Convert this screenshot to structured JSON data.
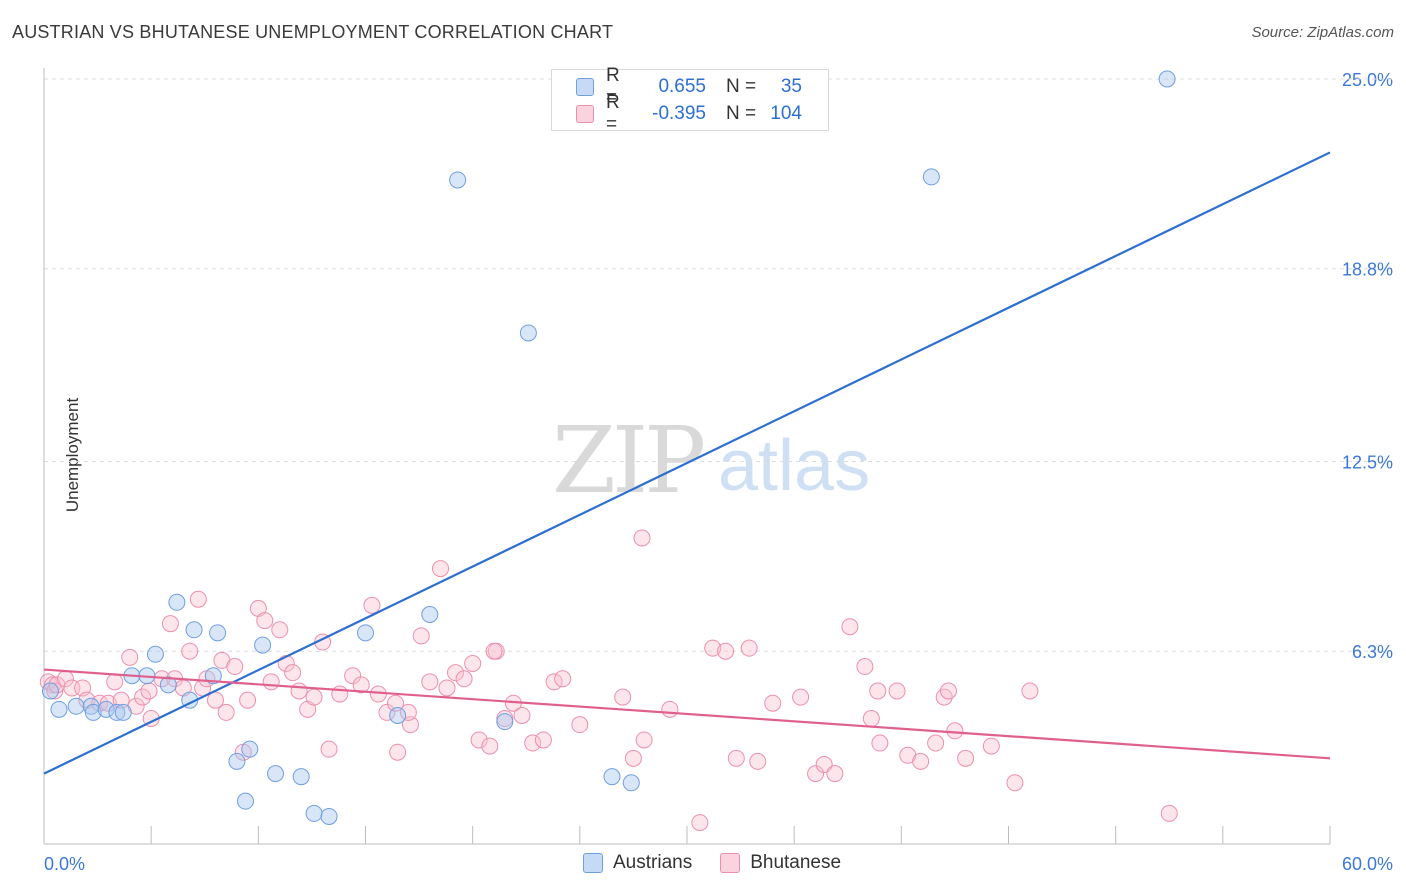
{
  "header": {
    "title": "AUSTRIAN VS BHUTANESE UNEMPLOYMENT CORRELATION CHART",
    "source": "Source: ZipAtlas.com"
  },
  "watermark": {
    "zip": "ZIP",
    "atlas": "atlas"
  },
  "legend": {
    "rows": [
      {
        "r_label": "R =",
        "r_value": "0.655",
        "n_label": "N =",
        "n_value": "35",
        "color": "#a9c7f0",
        "border": "#6f9fe0"
      },
      {
        "r_label": "R =",
        "r_value": "-0.395",
        "n_label": "N =",
        "n_value": "104",
        "color": "#f7c0d0",
        "border": "#ec8fae"
      }
    ]
  },
  "bottom_legend": {
    "austrians": "Austrians",
    "bhutanese": "Bhutanese"
  },
  "chart_data": {
    "type": "scatter",
    "title": "AUSTRIAN VS BHUTANESE UNEMPLOYMENT CORRELATION CHART",
    "xlabel": "",
    "ylabel": "Unemployment",
    "xlim": [
      0,
      60
    ],
    "ylim": [
      0,
      26
    ],
    "x_tick_labels": [
      "0.0%",
      "60.0%"
    ],
    "y_ticks": [
      6.3,
      12.5,
      18.8,
      25.0
    ],
    "y_tick_labels": [
      "6.3%",
      "12.5%",
      "18.8%",
      "25.0%"
    ],
    "colors": {
      "austrians": "#2c6fd1",
      "bhutanese": "#e0608d",
      "axis_text": "#3b78d8"
    },
    "series": [
      {
        "name": "Austrians",
        "R": 0.655,
        "N": 35,
        "trend": {
          "x0": 0,
          "y0": 2.3,
          "x1": 60,
          "y1": 22.6
        },
        "points": [
          [
            0.3,
            5.0
          ],
          [
            0.7,
            4.4
          ],
          [
            1.5,
            4.5
          ],
          [
            2.2,
            4.5
          ],
          [
            2.3,
            4.3
          ],
          [
            2.9,
            4.4
          ],
          [
            3.4,
            4.3
          ],
          [
            3.7,
            4.3
          ],
          [
            4.1,
            5.5
          ],
          [
            4.8,
            5.5
          ],
          [
            5.2,
            6.2
          ],
          [
            5.8,
            5.2
          ],
          [
            6.2,
            7.9
          ],
          [
            6.8,
            4.7
          ],
          [
            7.0,
            7.0
          ],
          [
            7.9,
            5.5
          ],
          [
            8.1,
            6.9
          ],
          [
            9.0,
            2.7
          ],
          [
            9.4,
            1.4
          ],
          [
            9.6,
            3.1
          ],
          [
            10.2,
            6.5
          ],
          [
            10.8,
            2.3
          ],
          [
            12.0,
            2.2
          ],
          [
            12.6,
            1.0
          ],
          [
            13.3,
            0.9
          ],
          [
            15.0,
            6.9
          ],
          [
            16.5,
            4.2
          ],
          [
            18.0,
            7.5
          ],
          [
            19.3,
            21.7
          ],
          [
            21.5,
            4.0
          ],
          [
            22.6,
            16.7
          ],
          [
            26.5,
            2.2
          ],
          [
            27.4,
            2.0
          ],
          [
            41.4,
            21.8
          ],
          [
            52.4,
            25.0
          ]
        ]
      },
      {
        "name": "Bhutanese",
        "R": -0.395,
        "N": 104,
        "trend": {
          "x0": 0,
          "y0": 5.7,
          "x1": 60,
          "y1": 2.8
        },
        "points": [
          [
            0.2,
            5.3
          ],
          [
            0.4,
            5.2
          ],
          [
            0.5,
            5.0
          ],
          [
            0.6,
            5.2
          ],
          [
            1.0,
            5.4
          ],
          [
            1.3,
            5.1
          ],
          [
            1.8,
            5.1
          ],
          [
            2.0,
            4.7
          ],
          [
            2.6,
            4.6
          ],
          [
            3.0,
            4.6
          ],
          [
            3.3,
            5.3
          ],
          [
            3.6,
            4.7
          ],
          [
            4.0,
            6.1
          ],
          [
            4.3,
            4.5
          ],
          [
            4.6,
            4.8
          ],
          [
            4.9,
            5.0
          ],
          [
            5.0,
            4.1
          ],
          [
            5.5,
            5.4
          ],
          [
            5.9,
            7.2
          ],
          [
            6.1,
            5.4
          ],
          [
            6.5,
            5.1
          ],
          [
            6.8,
            6.3
          ],
          [
            7.2,
            8.0
          ],
          [
            7.4,
            5.1
          ],
          [
            7.6,
            5.4
          ],
          [
            8.0,
            4.7
          ],
          [
            8.3,
            6.0
          ],
          [
            8.5,
            4.3
          ],
          [
            8.9,
            5.8
          ],
          [
            9.3,
            3.0
          ],
          [
            9.5,
            4.7
          ],
          [
            10.0,
            7.7
          ],
          [
            10.3,
            7.3
          ],
          [
            10.6,
            5.3
          ],
          [
            11.0,
            7.0
          ],
          [
            11.3,
            5.9
          ],
          [
            11.6,
            5.6
          ],
          [
            11.9,
            5.0
          ],
          [
            12.3,
            4.4
          ],
          [
            12.6,
            4.8
          ],
          [
            13.0,
            6.6
          ],
          [
            13.3,
            3.1
          ],
          [
            13.8,
            4.9
          ],
          [
            14.4,
            5.5
          ],
          [
            14.8,
            5.2
          ],
          [
            15.3,
            7.8
          ],
          [
            15.6,
            4.9
          ],
          [
            16.0,
            4.3
          ],
          [
            16.5,
            3.0
          ],
          [
            17.1,
            3.9
          ],
          [
            17.6,
            6.8
          ],
          [
            18.0,
            5.3
          ],
          [
            18.5,
            9.0
          ],
          [
            18.8,
            5.1
          ],
          [
            19.2,
            5.6
          ],
          [
            19.6,
            5.4
          ],
          [
            20.0,
            5.9
          ],
          [
            20.3,
            3.4
          ],
          [
            20.8,
            3.2
          ],
          [
            21.1,
            6.3
          ],
          [
            21.5,
            4.1
          ],
          [
            21.9,
            4.6
          ],
          [
            22.3,
            4.2
          ],
          [
            22.8,
            3.3
          ],
          [
            23.3,
            3.4
          ],
          [
            23.8,
            5.3
          ],
          [
            24.2,
            5.4
          ],
          [
            25.0,
            3.9
          ],
          [
            27.0,
            4.8
          ],
          [
            27.5,
            2.8
          ],
          [
            28.0,
            3.4
          ],
          [
            27.9,
            10.0
          ],
          [
            29.2,
            4.4
          ],
          [
            30.6,
            0.7
          ],
          [
            31.2,
            6.4
          ],
          [
            31.8,
            6.3
          ],
          [
            32.3,
            2.8
          ],
          [
            32.9,
            6.4
          ],
          [
            33.3,
            2.7
          ],
          [
            34.0,
            4.6
          ],
          [
            35.3,
            4.8
          ],
          [
            36.0,
            2.3
          ],
          [
            36.4,
            2.6
          ],
          [
            36.9,
            2.3
          ],
          [
            37.6,
            7.1
          ],
          [
            38.3,
            5.8
          ],
          [
            38.6,
            4.1
          ],
          [
            39.0,
            3.3
          ],
          [
            39.8,
            5.0
          ],
          [
            40.3,
            2.9
          ],
          [
            40.9,
            2.7
          ],
          [
            41.6,
            3.3
          ],
          [
            42.0,
            4.8
          ],
          [
            42.2,
            5.0
          ],
          [
            42.5,
            3.7
          ],
          [
            43.0,
            2.8
          ],
          [
            44.2,
            3.2
          ],
          [
            45.3,
            2.0
          ],
          [
            46.0,
            5.0
          ],
          [
            52.5,
            1.0
          ],
          [
            38.9,
            5.0
          ],
          [
            17.0,
            4.3
          ],
          [
            16.4,
            4.6
          ],
          [
            21.0,
            6.3
          ]
        ]
      }
    ]
  }
}
